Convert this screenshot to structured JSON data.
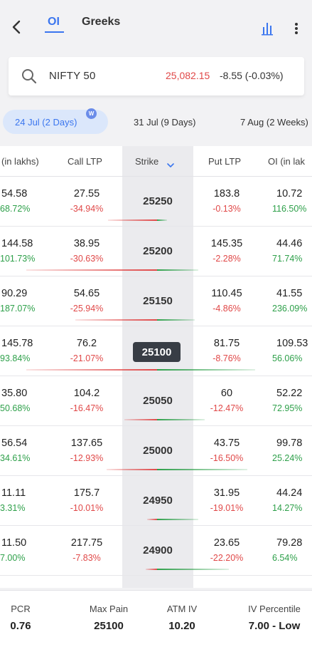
{
  "header": {
    "tabs": [
      {
        "label": "OI",
        "active": true
      },
      {
        "label": "Greeks",
        "active": false
      }
    ],
    "accent_color": "#3b76ef",
    "icons": [
      "back-arrow-icon",
      "bar-chart-icon",
      "more-vertical-icon"
    ]
  },
  "search": {
    "index_name": "NIFTY 50",
    "price": "25,082.15",
    "change": "-8.55 (-0.03%)",
    "icon": "search-icon"
  },
  "expiries": [
    {
      "label": "24 Jul (2 Days)",
      "badge": "W",
      "active": true
    },
    {
      "label": "31 Jul (9 Days)",
      "active": false
    },
    {
      "label": "7 Aug (2 Weeks)",
      "active": false
    }
  ],
  "table": {
    "columns": {
      "call_oi": "(in lakhs)",
      "call_ltp": "Call LTP",
      "strike": "Strike",
      "put_ltp": "Put LTP",
      "put_oi": "OI (in lak"
    },
    "atm_strike": "25100",
    "rows": [
      {
        "call_oi": "54.58",
        "call_oi_chg": "68.72%",
        "call_ltp": "27.55",
        "call_ltp_chg": "-34.94%",
        "strike": "25250",
        "put_ltp": "183.8",
        "put_ltp_chg": "-0.13%",
        "put_oi": "10.72",
        "put_oi_chg": "116.50%",
        "call_oi_bar": 0.3,
        "put_oi_bar": 0.06
      },
      {
        "call_oi": "144.58",
        "call_oi_chg": "101.73%",
        "call_ltp": "38.95",
        "call_ltp_chg": "-30.63%",
        "strike": "25200",
        "put_ltp": "145.35",
        "put_ltp_chg": "-2.28%",
        "put_oi": "44.46",
        "put_oi_chg": "71.74%",
        "call_oi_bar": 0.8,
        "put_oi_bar": 0.25
      },
      {
        "call_oi": "90.29",
        "call_oi_chg": "187.07%",
        "call_ltp": "54.65",
        "call_ltp_chg": "-25.94%",
        "strike": "25150",
        "put_ltp": "110.45",
        "put_ltp_chg": "-4.86%",
        "put_oi": "41.55",
        "put_oi_chg": "236.09%",
        "call_oi_bar": 0.5,
        "put_oi_bar": 0.23
      },
      {
        "call_oi": "145.78",
        "call_oi_chg": "93.84%",
        "call_ltp": "76.2",
        "call_ltp_chg": "-21.07%",
        "strike": "25100",
        "put_ltp": "81.75",
        "put_ltp_chg": "-8.76%",
        "put_oi": "109.53",
        "put_oi_chg": "56.06%",
        "call_oi_bar": 0.8,
        "put_oi_bar": 0.6
      },
      {
        "call_oi": "35.80",
        "call_oi_chg": "50.68%",
        "call_ltp": "104.2",
        "call_ltp_chg": "-16.47%",
        "strike": "25050",
        "put_ltp": "60",
        "put_ltp_chg": "-12.47%",
        "put_oi": "52.22",
        "put_oi_chg": "72.95%",
        "call_oi_bar": 0.2,
        "put_oi_bar": 0.29
      },
      {
        "call_oi": "56.54",
        "call_oi_chg": "34.61%",
        "call_ltp": "137.65",
        "call_ltp_chg": "-12.93%",
        "strike": "25000",
        "put_ltp": "43.75",
        "put_ltp_chg": "-16.50%",
        "put_oi": "99.78",
        "put_oi_chg": "25.24%",
        "call_oi_bar": 0.31,
        "put_oi_bar": 0.55
      },
      {
        "call_oi": "11.11",
        "call_oi_chg": "3.31%",
        "call_ltp": "175.7",
        "call_ltp_chg": "-10.01%",
        "strike": "24950",
        "put_ltp": "31.95",
        "put_ltp_chg": "-19.01%",
        "put_oi": "44.24",
        "put_oi_chg": "14.27%",
        "call_oi_bar": 0.06,
        "put_oi_bar": 0.25
      },
      {
        "call_oi": "11.50",
        "call_oi_chg": "7.00%",
        "call_ltp": "217.75",
        "call_ltp_chg": "-7.83%",
        "strike": "24900",
        "put_ltp": "23.65",
        "put_ltp_chg": "-22.20%",
        "put_oi": "79.28",
        "put_oi_chg": "6.54%",
        "call_oi_bar": 0.07,
        "put_oi_bar": 0.44
      }
    ]
  },
  "footer": {
    "stats": [
      {
        "label": "PCR",
        "value": "0.76"
      },
      {
        "label": "Max Pain",
        "value": "25100"
      },
      {
        "label": "ATM IV",
        "value": "10.20"
      },
      {
        "label": "IV Percentile",
        "value": "7.00 - Low"
      }
    ]
  },
  "colors": {
    "positive": "#2ea04a",
    "negative": "#e04848",
    "atm_bg": "#383d45"
  }
}
